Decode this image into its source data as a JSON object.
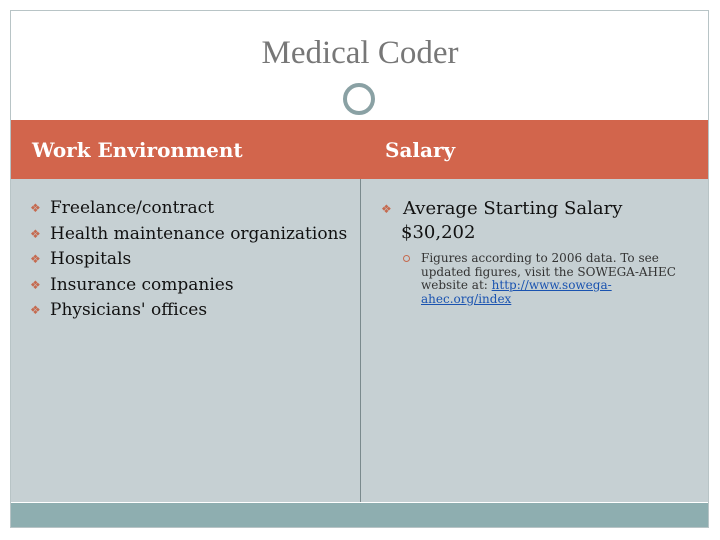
{
  "slide": {
    "title": "Medical Coder",
    "left": {
      "heading": "Work Environment",
      "items": [
        "Freelance/contract",
        "Health maintenance organizations",
        "Hospitals",
        "Insurance companies",
        "Physicians' offices"
      ]
    },
    "right": {
      "heading": "Salary",
      "main_line1": "Average Starting Salary",
      "main_line2": "$30,202",
      "note_text": "Figures according to 2006 data. To see updated figures, visit the SOWEGA-AHEC website at:",
      "note_link": "http://www.sowega-ahec.org/index"
    }
  },
  "colors": {
    "header": "#d2654c",
    "body": "#c6d0d3",
    "footer": "#8eaeb0",
    "bullet": "#c56a4f"
  }
}
